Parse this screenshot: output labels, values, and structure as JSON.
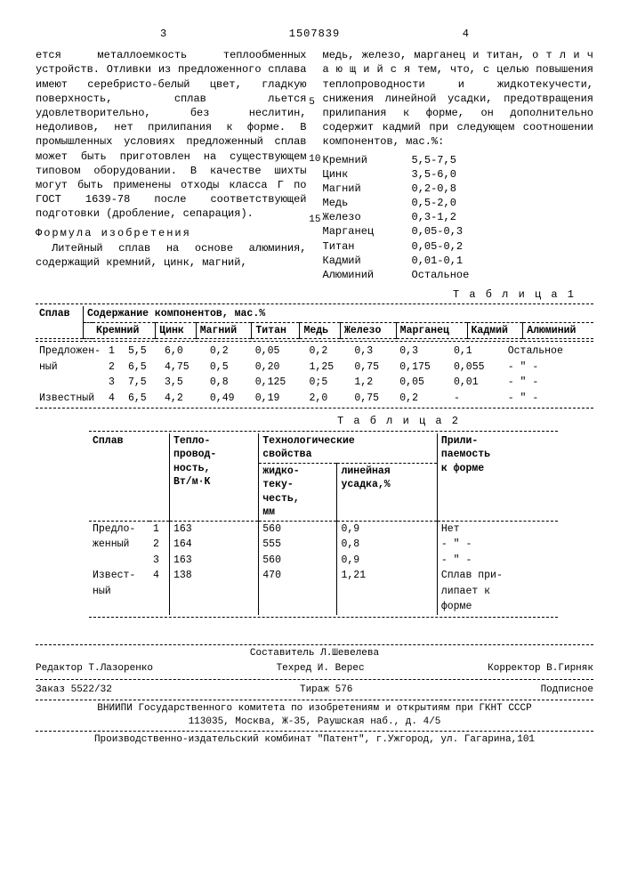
{
  "header": {
    "page_left": "3",
    "doc_number": "1507839",
    "page_right": "4"
  },
  "line_numbers": [
    "5",
    "10",
    "15"
  ],
  "col_left_text": "ется металлоемкость теплообменных устройств. Отливки из предложенного сплава имеют серебристо-белый цвет, гладкую поверхность, сплав льется удовлетворительно, без неслитин, недоливов, нет прилипания к форме. В промышленных условиях предложенный сплав может быть приготовлен на существующем типовом оборудовании. В качестве шихты могут быть применены отходы класса Г по ГОСТ 1639-78 после соответствующей подготовки (дробление, сепарация).",
  "formula_title": "Формула изобретения",
  "col_left_tail": "Литейный сплав на основе алюминия, содержащий кремний, цинк, магний,",
  "col_right_text": "медь, железо, марганец и титан, о т л и ч а ю щ и й с я тем, что, с целью повышения теплопроводности и жидкотекучести, снижения линейной усадки, предотвращения прилипания к форме, он дополнительно содержит кадмий при следующем соотношении компонентов, мас.%:",
  "composition": [
    {
      "name": "Кремний",
      "val": "5,5-7,5"
    },
    {
      "name": "Цинк",
      "val": "3,5-6,0"
    },
    {
      "name": "Магний",
      "val": "0,2-0,8"
    },
    {
      "name": "Медь",
      "val": "0,5-2,0"
    },
    {
      "name": "Железо",
      "val": "0,3-1,2"
    },
    {
      "name": "Марганец",
      "val": "0,05-0,3"
    },
    {
      "name": "Титан",
      "val": "0,05-0,2"
    },
    {
      "name": "Кадмий",
      "val": "0,01-0,1"
    },
    {
      "name": "Алюминий",
      "val": "Остальное"
    }
  ],
  "table1": {
    "label": "Т а б л и ц а 1",
    "head_splav": "Сплав",
    "head_group": "Содержание компонентов, мас.%",
    "cols": [
      "Кремний",
      "Цинк",
      "Магний",
      "Титан",
      "Медь",
      "Железо",
      "Марганец",
      "Кадмий",
      "Алюминий"
    ],
    "rows": [
      {
        "label": "Предложен-",
        "n": "1",
        "c": [
          "5,5",
          "6,0",
          "0,2",
          "0,05",
          "0,2",
          "0,3",
          "0,3",
          "0,1",
          "Остальное"
        ]
      },
      {
        "label": "ный",
        "n": "2",
        "c": [
          "6,5",
          "4,75",
          "0,5",
          "0,20",
          "1,25",
          "0,75",
          "0,175",
          "0,055",
          "- \" -"
        ]
      },
      {
        "label": "",
        "n": "3",
        "c": [
          "7,5",
          "3,5",
          "0,8",
          "0,125",
          "0;5",
          "1,2",
          "0,05",
          "0,01",
          "- \" -"
        ]
      },
      {
        "label": "Известный",
        "n": "4",
        "c": [
          "6,5",
          "4,2",
          "0,49",
          "0,19",
          "2,0",
          "0,75",
          "0,2",
          "-",
          "- \" -"
        ]
      }
    ]
  },
  "table2": {
    "label": "Т а б л и ц а 2",
    "head_splav": "Сплав",
    "head_tp": "Тепло-\nпровод-\nность,\nВт/м·К",
    "head_tech": "Технологические\nсвойства",
    "head_pril": "Прили-\nпаемость\nк форме",
    "sub_zh": "жидко-\nтеку-\nчесть,\nмм",
    "sub_lu": "линейная\nусадка,%",
    "rows": [
      {
        "label": "Предло-",
        "n": "1",
        "tp": "163",
        "zh": "560",
        "lu": "0,9",
        "pr": "Нет"
      },
      {
        "label": "женный",
        "n": "2",
        "tp": "164",
        "zh": "555",
        "lu": "0,8",
        "pr": "- \" -"
      },
      {
        "label": "",
        "n": "3",
        "tp": "163",
        "zh": "560",
        "lu": "0,9",
        "pr": "- \" -"
      },
      {
        "label": "Извест-",
        "n": "4",
        "tp": "138",
        "zh": "470",
        "lu": "1,21",
        "pr": "Сплав при-"
      },
      {
        "label": "ный",
        "n": "",
        "tp": "",
        "zh": "",
        "lu": "",
        "pr": "липает к"
      },
      {
        "label": "",
        "n": "",
        "tp": "",
        "zh": "",
        "lu": "",
        "pr": "форме"
      }
    ]
  },
  "footer": {
    "sostavitel": "Составитель Л.Шевелева",
    "redactor": "Редактор Т.Лазоренко",
    "techred": "Техред  И. Верес",
    "korrektor": "Корректор  В.Гирняк",
    "zakaz": "Заказ 5522/32",
    "tirazh": "Тираж 576",
    "podpisnoe": "Подписное",
    "vniipi": "ВНИИПИ Государственного комитета по изобретениям и открытиям при ГКНТ СССР",
    "address": "113035, Москва, Ж-35, Раушская наб., д. 4/5",
    "proizv": "Производственно-издательский комбинат \"Патент\", г.Ужгород, ул. Гагарина,101"
  }
}
